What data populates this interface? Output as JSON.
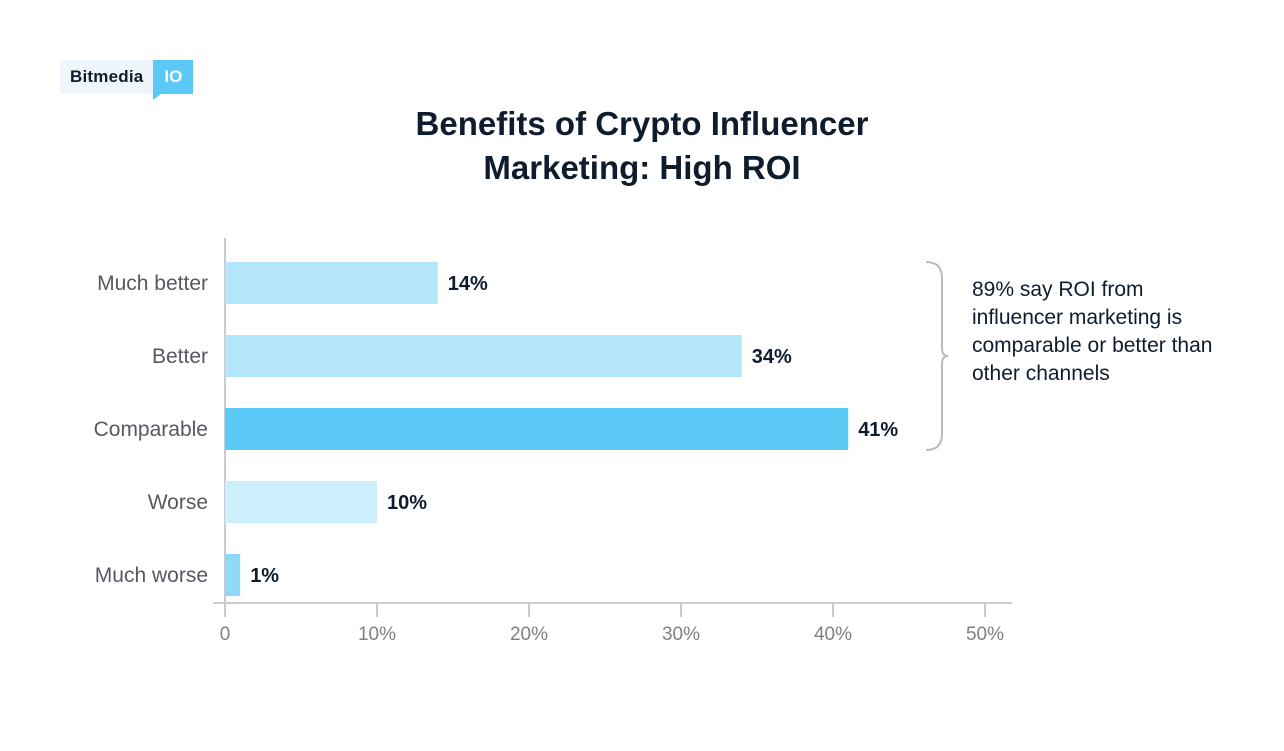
{
  "logo": {
    "text": "Bitmedia",
    "badge": "IO"
  },
  "colors": {
    "title": "#0f1c2e",
    "bar_light": "#b3e6fa",
    "bar_lighter": "#cdeefb",
    "bar_highlight": "#5ac9f5",
    "axis": "#c8ccd0"
  },
  "chart_data": {
    "type": "bar",
    "orientation": "horizontal",
    "title": "Benefits of Crypto Influencer Marketing: High ROI",
    "title_lines": [
      "Benefits of Crypto Influencer",
      "Marketing: High ROI"
    ],
    "categories": [
      "Much better",
      "Better",
      "Comparable",
      "Worse",
      "Much worse"
    ],
    "values": [
      14,
      34,
      41,
      10,
      1
    ],
    "value_labels": [
      "14%",
      "34%",
      "41%",
      "10%",
      "1%"
    ],
    "bar_colors": [
      "#b3e6fa",
      "#b3e6fa",
      "#5ac9f5",
      "#cdeefb",
      "#8ed9f8"
    ],
    "xlim": [
      0,
      50
    ],
    "xticks": [
      0,
      10,
      20,
      30,
      40,
      50
    ],
    "xtick_labels": [
      "0",
      "10%",
      "20%",
      "30%",
      "40%",
      "50%"
    ],
    "xlabel": "",
    "ylabel": "",
    "grid": false,
    "annotation": {
      "text": "89% say ROI from influencer marketing is comparable or better than other channels",
      "brackets": [
        "Much better",
        "Better",
        "Comparable"
      ]
    }
  }
}
